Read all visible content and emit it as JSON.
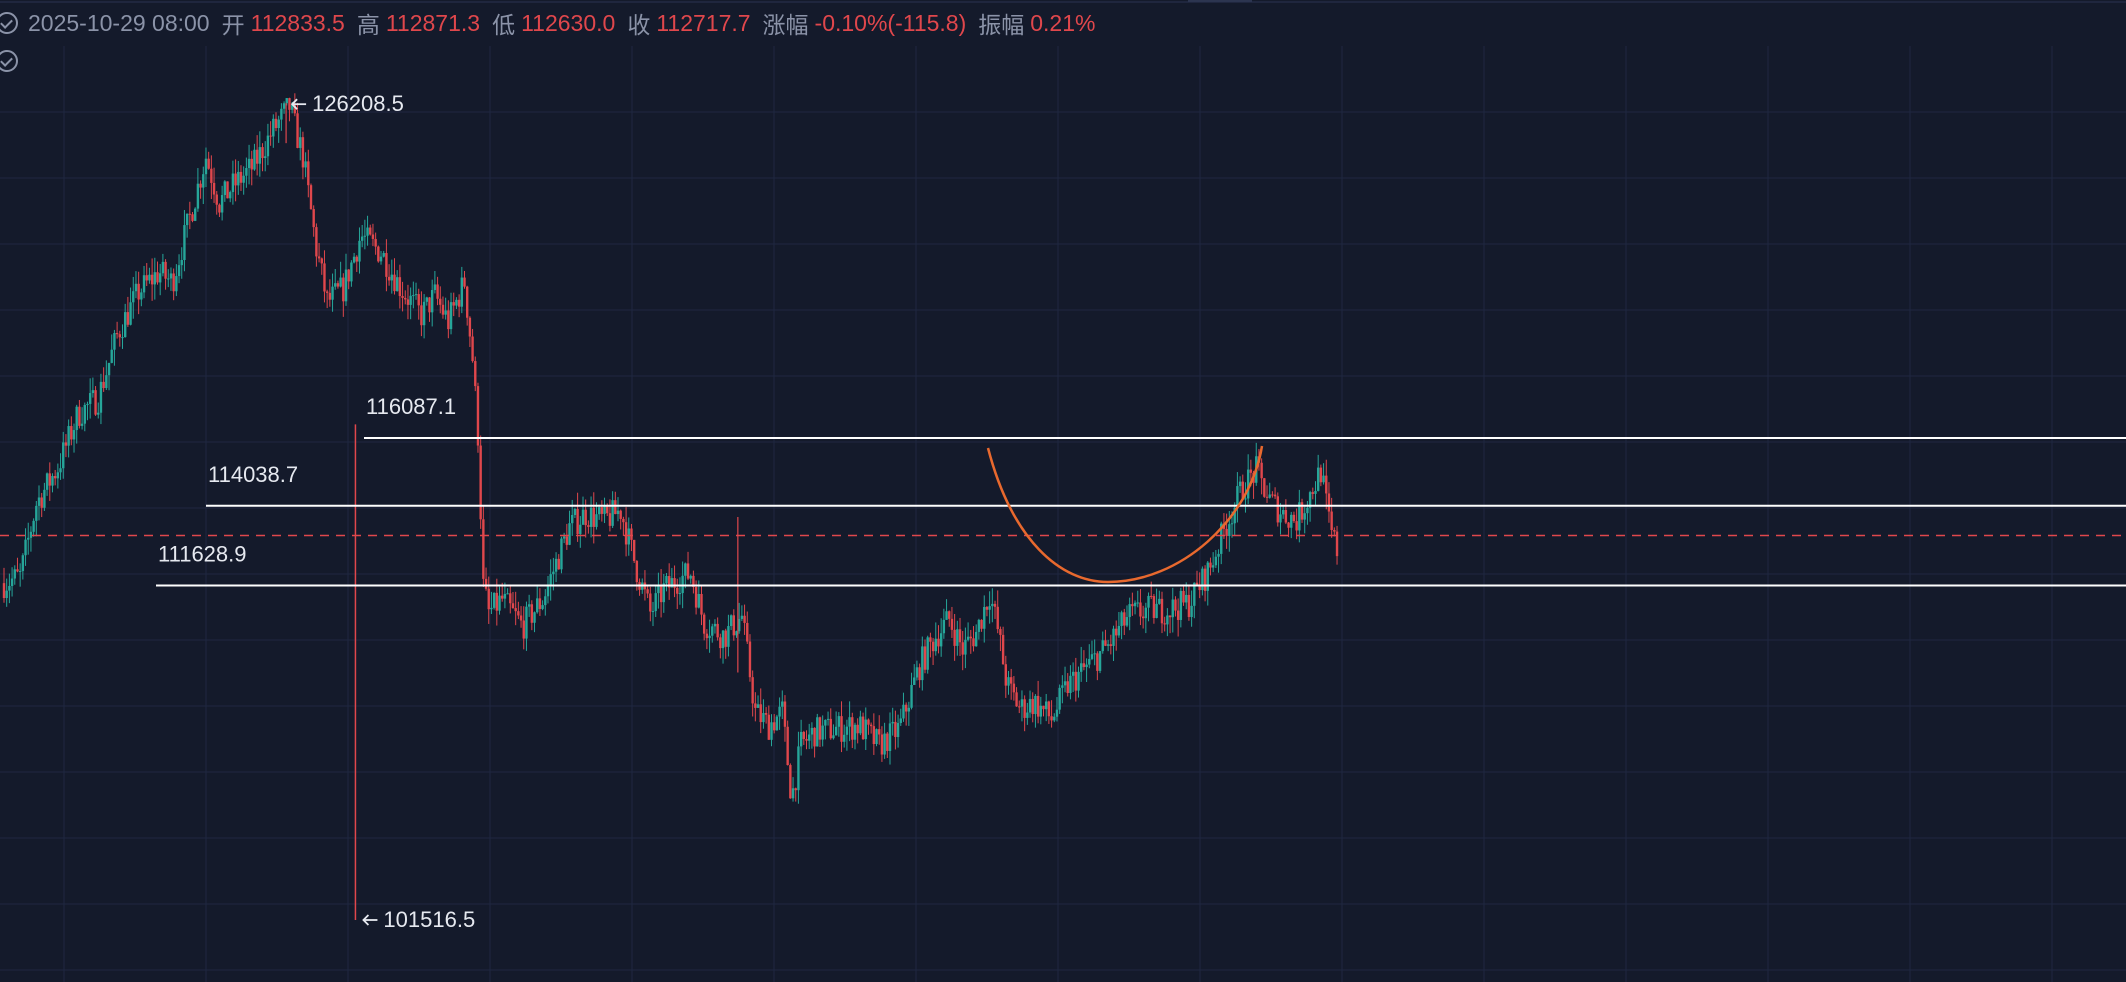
{
  "header": {
    "datetime": "2025-10-29 08:00",
    "open_label": "开",
    "open_value": "112833.5",
    "high_label": "高",
    "high_value": "112871.3",
    "low_label": "低",
    "low_value": "112630.0",
    "close_label": "收",
    "close_value": "112717.7",
    "change_label": "涨幅",
    "change_value": "-0.10%(-115.8)",
    "amplitude_label": "振幅",
    "amplitude_value": "0.21%"
  },
  "colors": {
    "background": "#141a2b",
    "grid": "#1f2740",
    "up": "#26a69a",
    "down": "#e0474c",
    "level_line": "#ffffff",
    "current_price_line": "#e0474c",
    "arc": "#e8692e",
    "text": "#e6e9f0",
    "muted_text": "#8b93a8"
  },
  "chart_data": {
    "type": "candlestick",
    "ylim": [
      99000,
      129000
    ],
    "grid": true,
    "series": [
      {
        "x": [
          0,
          12,
          24,
          40,
          55,
          70,
          85,
          100,
          115,
          125,
          135,
          150,
          160,
          170,
          185,
          200,
          212,
          222,
          232,
          240,
          252,
          265,
          280,
          295,
          310,
          320,
          330,
          342,
          348,
          352,
          356,
          360,
          370,
          385,
          400,
          420,
          432,
          445,
          458,
          470,
          480,
          490,
          500,
          510,
          520,
          535,
          548,
          558,
          568,
          578,
          585,
          592,
          602,
          618,
          635,
          650,
          665,
          680,
          692,
          702,
          712,
          722,
          732,
          738,
          745,
          755,
          765,
          778,
          790,
          805,
          820,
          835,
          850,
          865,
          880,
          895,
          908,
          920,
          930,
          940,
          950,
          960,
          970,
          978,
          985,
          990
        ],
        "values": [
          111700,
          111900,
          114100,
          115200,
          116800,
          117300,
          119300,
          120500,
          121100,
          120800,
          122300,
          124600,
          123200,
          123700,
          124300,
          125400,
          126100,
          124600,
          121800,
          120200,
          120600,
          122200,
          121700,
          120600,
          119800,
          120400,
          119600,
          120800,
          118500,
          116200,
          111600,
          110800,
          111200,
          110400,
          111200,
          113400,
          113800,
          113600,
          113900,
          112100,
          110800,
          111500,
          111800,
          112000,
          110500,
          110100,
          110700,
          107800,
          107400,
          107800,
          105200,
          106800,
          107200,
          107300,
          107400,
          106800,
          107300,
          109200,
          110100,
          110600,
          109700,
          110200,
          111400,
          110300,
          108600,
          107900,
          108100,
          107600,
          108600,
          109200,
          109800,
          110700,
          110900,
          110900,
          111100,
          112100,
          113500,
          114600,
          115100,
          114200,
          113800,
          113600,
          114400,
          115100,
          113300,
          112700
        ]
      }
    ],
    "annotations": [
      {
        "label": "126208.5",
        "value": 126208.5,
        "type": "high-marker"
      },
      {
        "label": "101516.5",
        "value": 101516.5,
        "type": "low-marker"
      }
    ],
    "levels": [
      {
        "label": "116087.1",
        "value": 116087.1
      },
      {
        "label": "114038.7",
        "value": 114038.7
      },
      {
        "label": "111628.9",
        "value": 111628.9
      }
    ],
    "current_price": 112717.7
  }
}
